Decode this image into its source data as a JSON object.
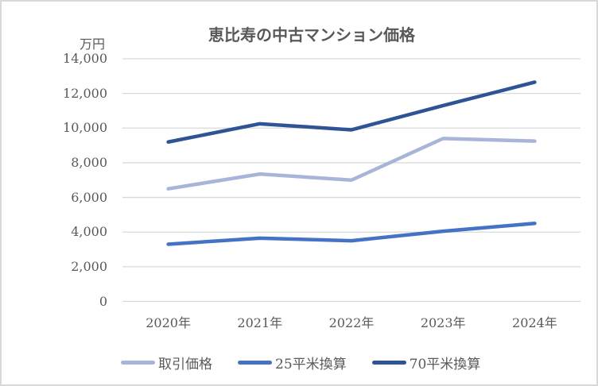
{
  "styles": {
    "text_color": "#595959",
    "gridline_color": "#D9D9D9",
    "border_color": "#D9D9D9",
    "background": "#FFFFFF"
  },
  "chart_data": {
    "type": "line",
    "title": "恵比寿の中古マンション価格",
    "y_axis_title": "万円",
    "categories": [
      "2020年",
      "2021年",
      "2022年",
      "2023年",
      "2024年"
    ],
    "series": [
      {
        "name": "取引価格",
        "color": "#A9B4D9",
        "values": [
          6500,
          7350,
          7000,
          9400,
          9250
        ]
      },
      {
        "name": "25平米換算",
        "color": "#4472C4",
        "values": [
          3300,
          3650,
          3500,
          4050,
          4500
        ]
      },
      {
        "name": "70平米換算",
        "color": "#2F5496",
        "values": [
          9200,
          10250,
          9900,
          11300,
          12650
        ]
      }
    ],
    "ylim": [
      0,
      14000
    ],
    "ytick_step": 2000,
    "ytick_labels": [
      "0",
      "2,000",
      "4,000",
      "6,000",
      "8,000",
      "10,000",
      "12,000",
      "14,000"
    ],
    "grid": true,
    "legend_position": "bottom"
  }
}
